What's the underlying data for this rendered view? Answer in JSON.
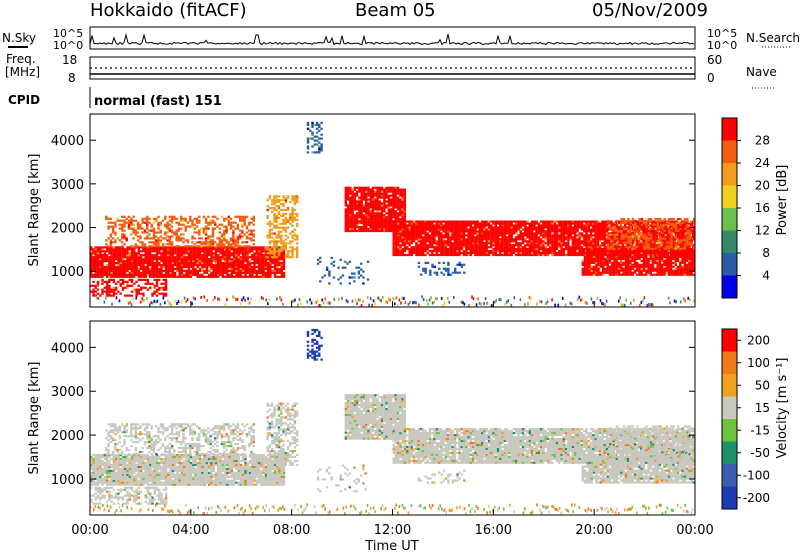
{
  "header": {
    "radar": "Hokkaido (fitACF)",
    "beam": "Beam 05",
    "date": "05/Nov/2009"
  },
  "strip_panels": {
    "nsky_label": "N.Sky",
    "nsearch_label": "N.Search",
    "counts_ticks": [
      "10^5",
      "10^0"
    ],
    "freq_label": "Freq.",
    "freq_unit": "[MHz]",
    "freq_ticks": [
      "18",
      "8"
    ],
    "nave_label": "Nave",
    "nave_ticks": [
      "60",
      "0"
    ],
    "cpid_label": "CPID",
    "cpid_value": "normal (fast) 151"
  },
  "chart_data": [
    {
      "type": "heatmap",
      "name": "power",
      "ylabel": "Slant Range [km]",
      "yticks": [
        1000,
        2000,
        3000,
        4000
      ],
      "ylim": [
        180,
        4600
      ],
      "xlim": [
        0,
        24
      ],
      "colorbar_label": "Power [dB]",
      "colorbar_ticks": [
        4,
        8,
        12,
        16,
        20,
        24,
        28
      ],
      "colorbar_colors": [
        "#0000e6",
        "#2a5ca8",
        "#33896a",
        "#6cbf4a",
        "#f0d020",
        "#f39b1a",
        "#f25d0f",
        "#ff0000"
      ]
    },
    {
      "type": "heatmap",
      "name": "velocity",
      "ylabel": "Slant Range [km]",
      "yticks": [
        1000,
        2000,
        3000,
        4000
      ],
      "ylim": [
        180,
        4600
      ],
      "xlim": [
        0,
        24
      ],
      "xticks": [
        "00:00",
        "04:00",
        "08:00",
        "12:00",
        "16:00",
        "20:00",
        "00:00"
      ],
      "xlabel": "Time UT",
      "colorbar_label": "Velocity [m s⁻¹]",
      "colorbar_ticks": [
        "200",
        "100",
        "50",
        "15",
        "-15",
        "-50",
        "-100",
        "-200"
      ],
      "colorbar_colors": [
        "#1c3bb4",
        "#3d5eb0",
        "#1f8f6c",
        "#6bc43c",
        "#c8c8c0",
        "#f0a020",
        "#f07818",
        "#ff0000"
      ]
    }
  ]
}
